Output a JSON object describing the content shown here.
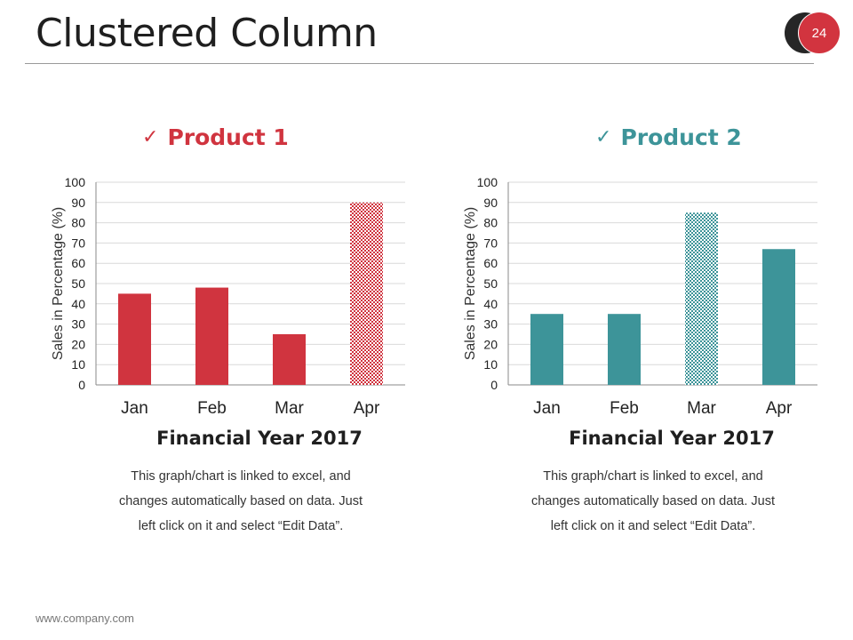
{
  "slide": {
    "title": "Clustered Column",
    "page_number": "24",
    "footer": "www.company.com",
    "badge_colors": {
      "dark": "#262626",
      "accent": "#d2343f"
    }
  },
  "panels": [
    {
      "label": "Product 1",
      "check_icon": "checkmark-icon",
      "color": "#d0343f",
      "xlabel": "Financial Year 2017",
      "description_lines": [
        "This graph/chart is linked to excel, and",
        "changes automatically based on data. Just",
        "left click on it and select “Edit Data”."
      ]
    },
    {
      "label": "Product 2",
      "check_icon": "checkmark-icon",
      "color": "#3d9499",
      "xlabel": "Financial Year 2017",
      "description_lines": [
        "This graph/chart is linked to excel, and",
        "changes automatically based on data. Just",
        "left click on it and select “Edit Data”."
      ]
    }
  ],
  "chart_data": [
    {
      "type": "bar",
      "title": "Product 1",
      "categories": [
        "Jan",
        "Feb",
        "Mar",
        "Apr"
      ],
      "values": [
        45,
        48,
        25,
        90
      ],
      "highlighted_category": "Apr",
      "ylabel": "Sales in Percentage (%)",
      "xlabel": "Financial Year 2017",
      "ylim": [
        0,
        100
      ],
      "yticks": [
        0,
        10,
        20,
        30,
        40,
        50,
        60,
        70,
        80,
        90,
        100
      ],
      "grid": true,
      "color": "#d0343f"
    },
    {
      "type": "bar",
      "title": "Product 2",
      "categories": [
        "Jan",
        "Feb",
        "Mar",
        "Apr"
      ],
      "values": [
        35,
        35,
        85,
        67
      ],
      "highlighted_category": "Mar",
      "ylabel": "Sales in Percentage (%)",
      "xlabel": "Financial Year 2017",
      "ylim": [
        0,
        100
      ],
      "yticks": [
        0,
        10,
        20,
        30,
        40,
        50,
        60,
        70,
        80,
        90,
        100
      ],
      "grid": true,
      "color": "#3d9499"
    }
  ]
}
